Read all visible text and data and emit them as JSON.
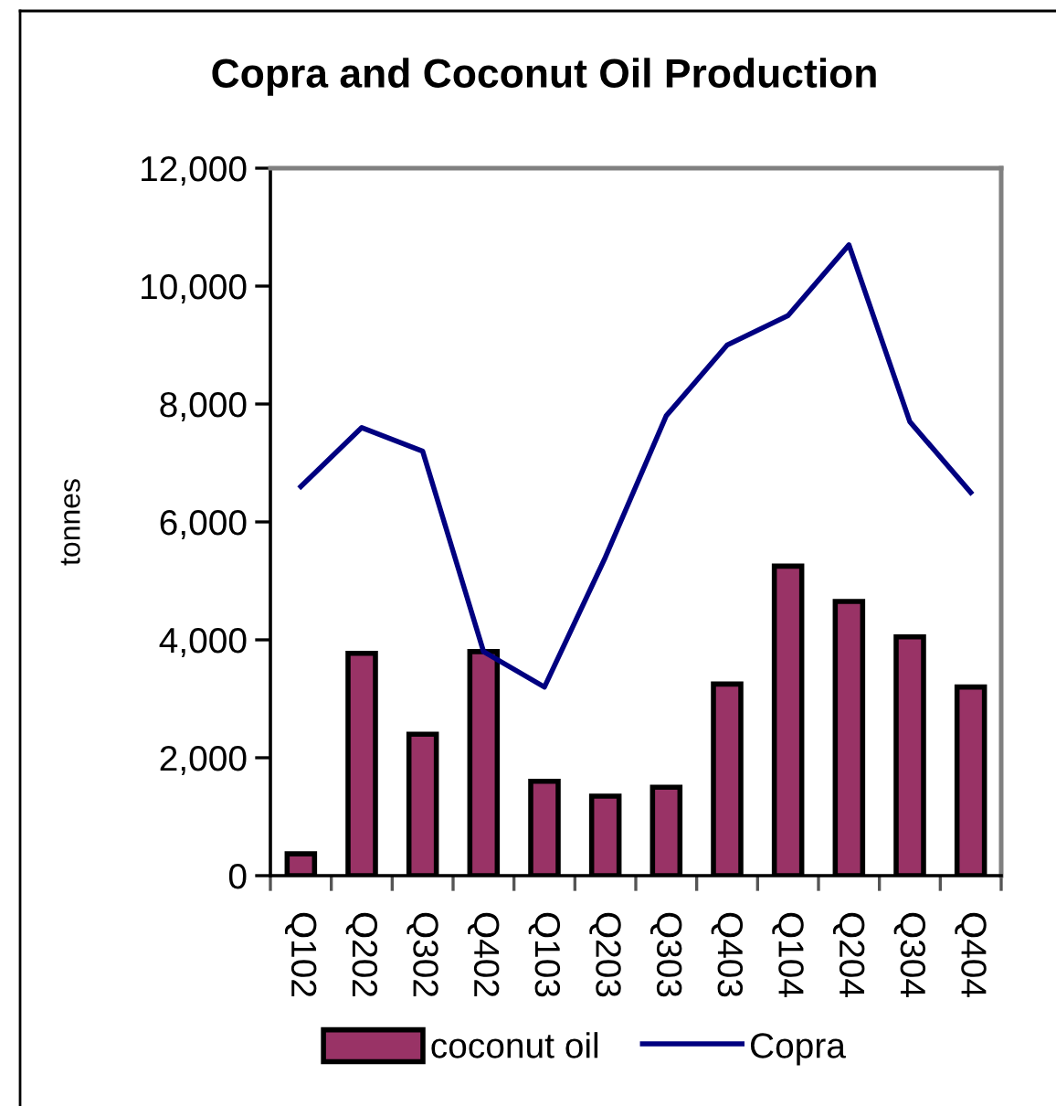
{
  "chart_data": {
    "type": "bar",
    "title": "Copra and Coconut Oil Production",
    "ylabel": "tonnes",
    "categories": [
      "Q102",
      "Q202",
      "Q302",
      "Q402",
      "Q103",
      "Q203",
      "Q303",
      "Q403",
      "Q104",
      "Q204",
      "Q304",
      "Q404"
    ],
    "series": [
      {
        "name": "coconut oil",
        "color": "#993366",
        "values": [
          370,
          3770,
          2400,
          3800,
          1600,
          1350,
          1500,
          3250,
          5250,
          4650,
          4050,
          3200
        ]
      },
      {
        "name": "Copra",
        "type": "line",
        "color": "#000080",
        "values": [
          6600,
          7600,
          7200,
          3800,
          3200,
          5400,
          7800,
          9000,
          9500,
          10700,
          7700,
          6500
        ]
      }
    ],
    "ylim": [
      0,
      12000
    ],
    "yticks": [
      0,
      {
        "value": 2000,
        "label": "2,000"
      },
      {
        "value": 4000,
        "label": "4,000"
      },
      {
        "value": 6000,
        "label": "6,000"
      },
      {
        "value": 8000,
        "label": "8,000"
      },
      {
        "value": 10000,
        "label": "10,000"
      },
      {
        "value": 12000,
        "label": "12,000"
      }
    ],
    "legend": "bottom"
  }
}
